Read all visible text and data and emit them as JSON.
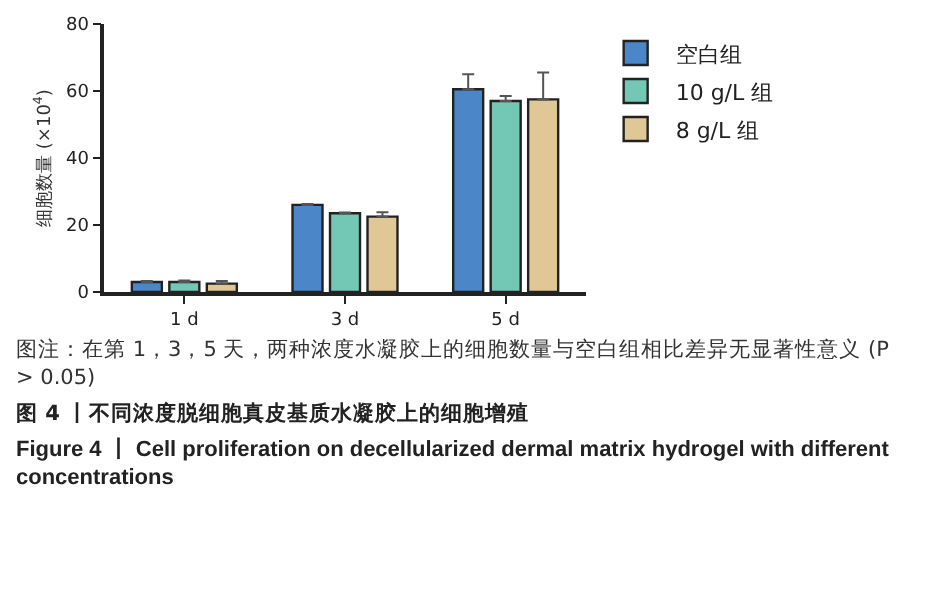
{
  "chart_data": {
    "type": "bar",
    "ylabel": "细胞数量 (×10$^{4}$)",
    "categories": [
      "1 d",
      "3 d",
      "5 d"
    ],
    "series": [
      {
        "name": "空白组",
        "color": "#4a86c8",
        "values": [
          3,
          26,
          60.5
        ],
        "errors": [
          [
            3,
            3.3
          ],
          [
            26,
            26.3
          ],
          [
            60.5,
            65
          ]
        ]
      },
      {
        "name": "10 g/L 组",
        "color": "#72c8b4",
        "values": [
          3,
          23.5,
          57
        ],
        "errors": [
          [
            3,
            3.4
          ],
          [
            23.5,
            23.7
          ],
          [
            57,
            58.5
          ]
        ]
      },
      {
        "name": "8 g/L 组",
        "color": "#e0c896",
        "values": [
          2.5,
          22.5,
          57.5
        ],
        "errors": [
          [
            2.5,
            3.3
          ],
          [
            22.5,
            23.8
          ],
          [
            57.5,
            65.5
          ]
        ]
      }
    ],
    "ylim": [
      0,
      80
    ],
    "yticks": [
      0,
      20,
      40,
      60,
      80
    ],
    "grid": false,
    "legend": "top right",
    "annotations": [
      "图注：在第 1，3，5 天，两种浓度水凝胶上的细胞数量与空白组相比差异无显著性意义 (P > 0.05)",
      "图 4 丨不同浓度脱细胞真皮基质水凝胶上的细胞增殖",
      "Figure 4 丨 Cell proliferation on decellularized dermal matrix hydrogel with different concentrations"
    ]
  }
}
